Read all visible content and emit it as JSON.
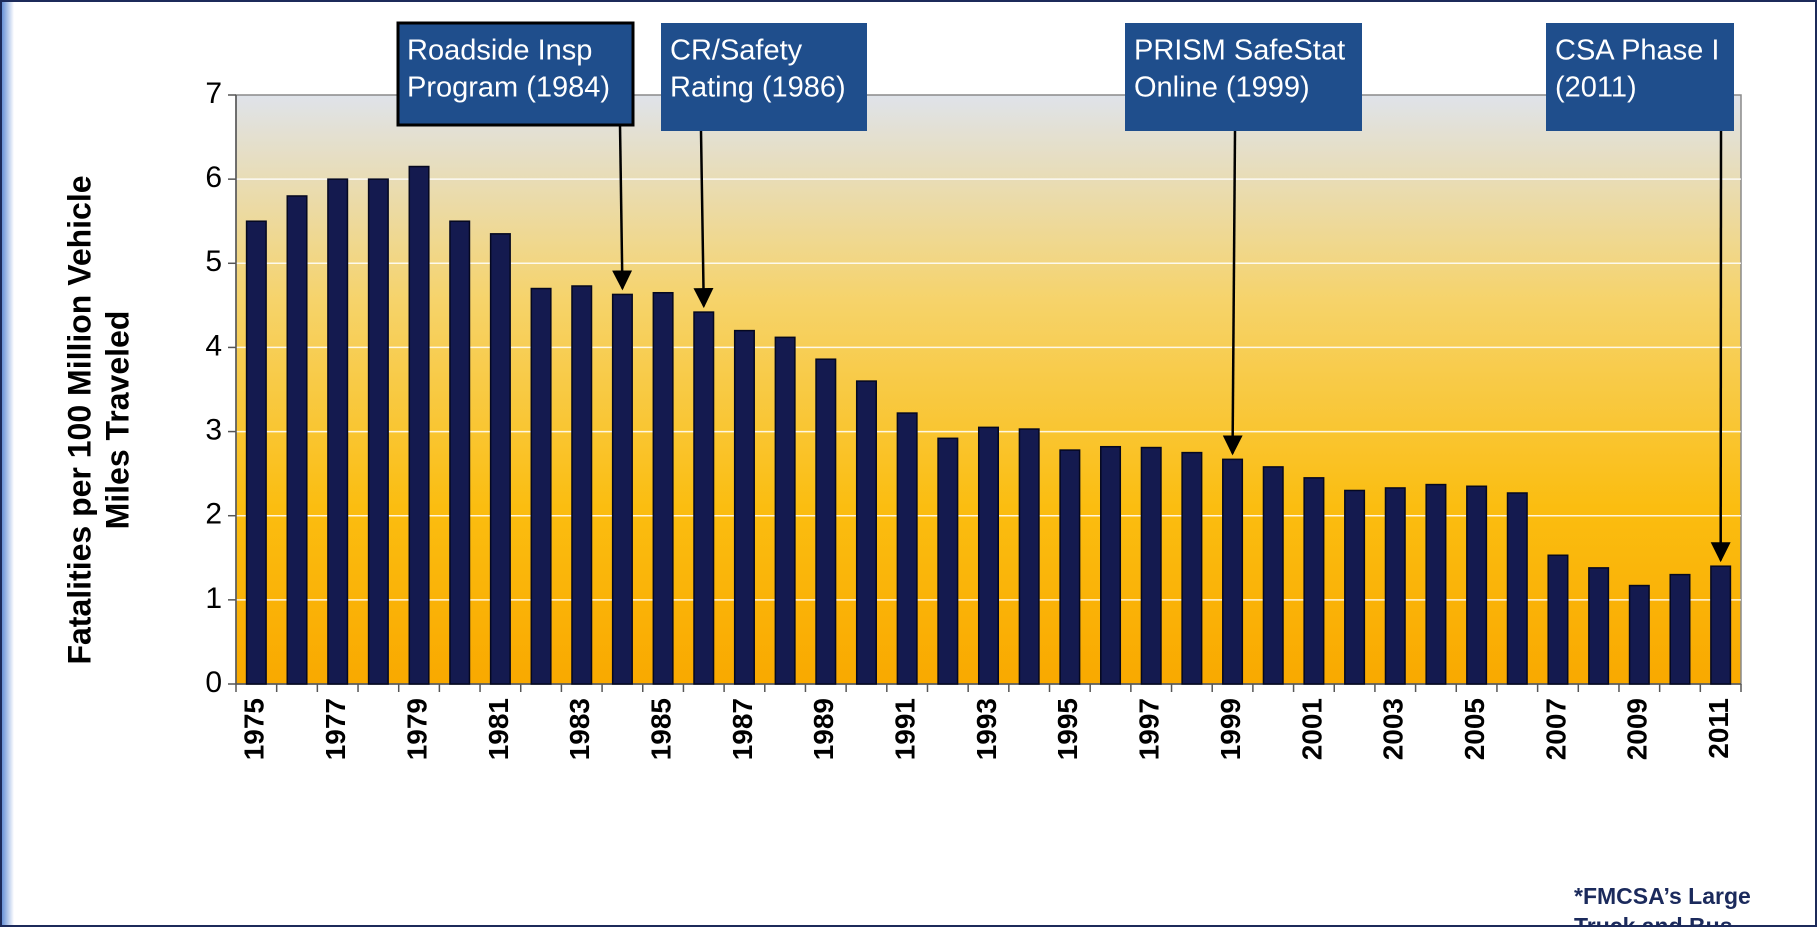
{
  "chart_data": {
    "type": "bar",
    "y_label_lines": [
      "Fatalities per 100 Million Vehicle",
      "Miles Traveled"
    ],
    "categories": [
      "1975",
      null,
      "1977",
      null,
      "1979",
      null,
      "1981",
      null,
      "1983",
      null,
      "1985",
      null,
      "1987",
      null,
      "1989",
      null,
      "1991",
      null,
      "1993",
      null,
      "1995",
      null,
      "1997",
      null,
      "1999",
      null,
      "2001",
      null,
      "2003",
      null,
      "2005",
      null,
      "2007",
      null,
      "2009",
      null,
      "2011"
    ],
    "values": [
      5.5,
      5.8,
      6.0,
      6.0,
      6.15,
      5.5,
      5.35,
      4.7,
      4.73,
      4.63,
      4.65,
      4.42,
      4.2,
      4.12,
      3.86,
      3.6,
      3.22,
      2.92,
      3.05,
      3.03,
      2.78,
      2.82,
      2.81,
      2.75,
      2.67,
      2.58,
      2.45,
      2.3,
      2.33,
      2.37,
      2.35,
      2.27,
      1.53,
      1.38,
      1.17,
      1.3,
      1.4
    ],
    "color": "#141a4f",
    "ylim": [
      0,
      7
    ],
    "yticks": [
      0,
      1,
      2,
      3,
      4,
      5,
      6,
      7
    ],
    "grid": true,
    "annotations": [
      {
        "lines": [
          "Roadside Insp",
          "Program (1984)"
        ]
      },
      {
        "lines": [
          "CR/Safety",
          "Rating (1986)"
        ]
      },
      {
        "lines": [
          "PRISM SafeStat",
          "Online (1999)"
        ]
      },
      {
        "lines": [
          "CSA Phase I",
          "(2011)"
        ]
      }
    ],
    "footnote_lines": [
      "*FMCSA’s Large",
      "Truck and Bus"
    ]
  }
}
